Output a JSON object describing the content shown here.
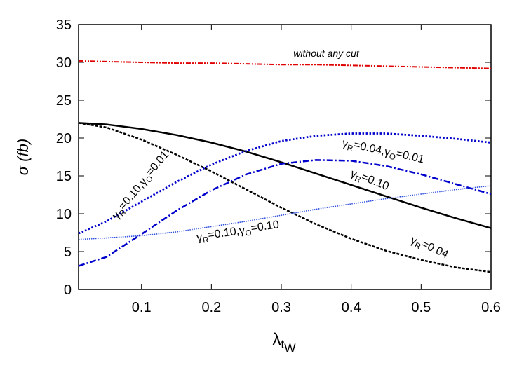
{
  "chart_data": {
    "type": "line",
    "xlabel": "λtW",
    "ylabel": "σ (fb)",
    "x": [
      0.01,
      0.05,
      0.1,
      0.15,
      0.2,
      0.25,
      0.3,
      0.35,
      0.4,
      0.45,
      0.5,
      0.55,
      0.6
    ],
    "series": [
      {
        "color": "#e00000",
        "values": [
          30.2,
          30.1,
          30.0,
          29.9,
          29.9,
          29.8,
          29.7,
          29.7,
          29.6,
          29.5,
          29.4,
          29.3,
          29.2
        ]
      },
      {
        "color": "#000000",
        "values": [
          22,
          21.8,
          21.2,
          20.4,
          19.4,
          18.2,
          16.8,
          15.3,
          13.8,
          12.3,
          10.8,
          9.4,
          8.1
        ]
      },
      {
        "color": "#000000",
        "values": [
          22,
          21.4,
          19.8,
          17.8,
          15.6,
          13.2,
          10.8,
          8.6,
          6.7,
          5.1,
          3.9,
          2.9,
          2.3
        ]
      },
      {
        "color": "#0000cc",
        "values": [
          7.4,
          9.0,
          11.6,
          14.2,
          16.5,
          18.3,
          19.6,
          20.3,
          20.6,
          20.6,
          20.3,
          19.9,
          19.4
        ]
      },
      {
        "color": "#0000cc",
        "values": [
          3.1,
          4.3,
          7.3,
          10.4,
          13.1,
          15.2,
          16.6,
          17.1,
          17.0,
          16.3,
          15.2,
          13.9,
          12.6
        ]
      },
      {
        "color": "#3050e0",
        "values": [
          6.6,
          6.8,
          7.1,
          7.6,
          8.3,
          9.0,
          9.8,
          10.6,
          11.3,
          12.0,
          12.6,
          13.2,
          13.7
        ]
      }
    ],
    "annotations": [
      "without any cut",
      "γR=0.10,γO=0.01",
      "γR=0.04,γO=0.01",
      "γR=0.10",
      "γR=0.10,γO=0.10",
      "γR=0.04"
    ],
    "xlim": [
      0.01,
      0.6
    ],
    "ylim": [
      0,
      35
    ],
    "xticks": [
      0.1,
      0.2,
      0.3,
      0.4,
      0.5,
      0.6
    ],
    "yticks": [
      0,
      5,
      10,
      15,
      20,
      25,
      30,
      35
    ]
  }
}
